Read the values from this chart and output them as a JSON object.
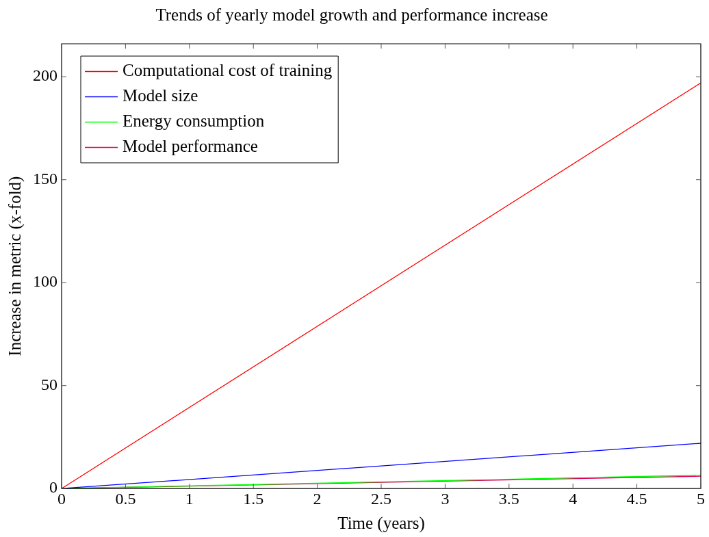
{
  "chart_data": {
    "type": "line",
    "title": "Trends of yearly model growth and performance increase",
    "xlabel": "Time (years)",
    "ylabel": "Increase in metric (x-fold)",
    "x": [
      0,
      5
    ],
    "series": [
      {
        "name": "Computational cost of training",
        "color": "#ff0000",
        "values": [
          0,
          197
        ]
      },
      {
        "name": "Model size",
        "color": "#0000ff",
        "values": [
          0,
          22
        ]
      },
      {
        "name": "Energy consumption",
        "color": "#00ff00",
        "values": [
          0,
          6.5
        ]
      },
      {
        "name": "Model performance",
        "color": "#e0005a",
        "values": [
          0,
          6
        ]
      }
    ],
    "xlim": [
      0,
      5
    ],
    "xticks": [
      0,
      0.5,
      1,
      1.5,
      2,
      2.5,
      3,
      3.5,
      4,
      4.5,
      5
    ],
    "ylim": [
      0,
      216
    ],
    "yticks": [
      0,
      50,
      100,
      150,
      200
    ],
    "grid": false,
    "legend": "top left",
    "marker": "none",
    "line_style": "solid"
  }
}
